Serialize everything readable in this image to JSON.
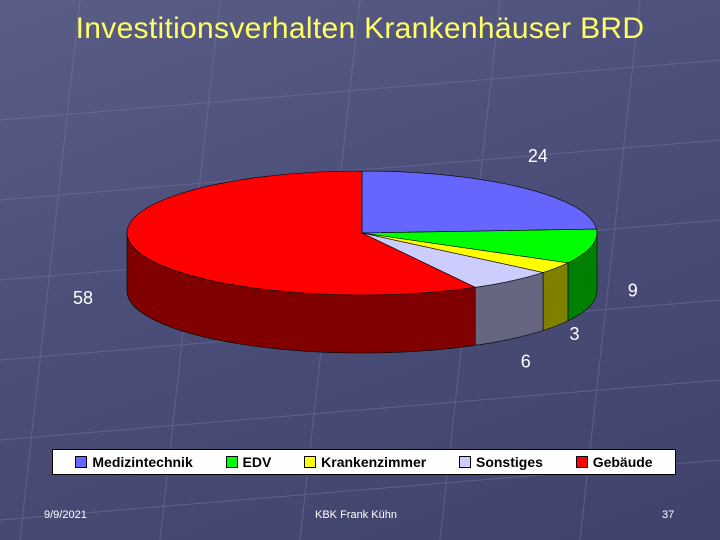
{
  "title": "Investitionsverhalten Krankenhäuser BRD",
  "chart_data": {
    "type": "pie",
    "title": "",
    "slices": [
      {
        "label": "Medizintechnik",
        "value": 24,
        "color": "#6666ff"
      },
      {
        "label": "EDV",
        "value": 9,
        "color": "#00ff00"
      },
      {
        "label": "Krankenzimmer",
        "value": 3,
        "color": "#ffff00"
      },
      {
        "label": "Sonstiges",
        "value": 6,
        "color": "#ccccff"
      },
      {
        "label": "Gebäude",
        "value": 58,
        "color": "#ff0000"
      }
    ],
    "legend_position": "bottom"
  },
  "footer": {
    "date": "9/9/2021",
    "author": "KBK Frank Kühn",
    "page": "37"
  }
}
